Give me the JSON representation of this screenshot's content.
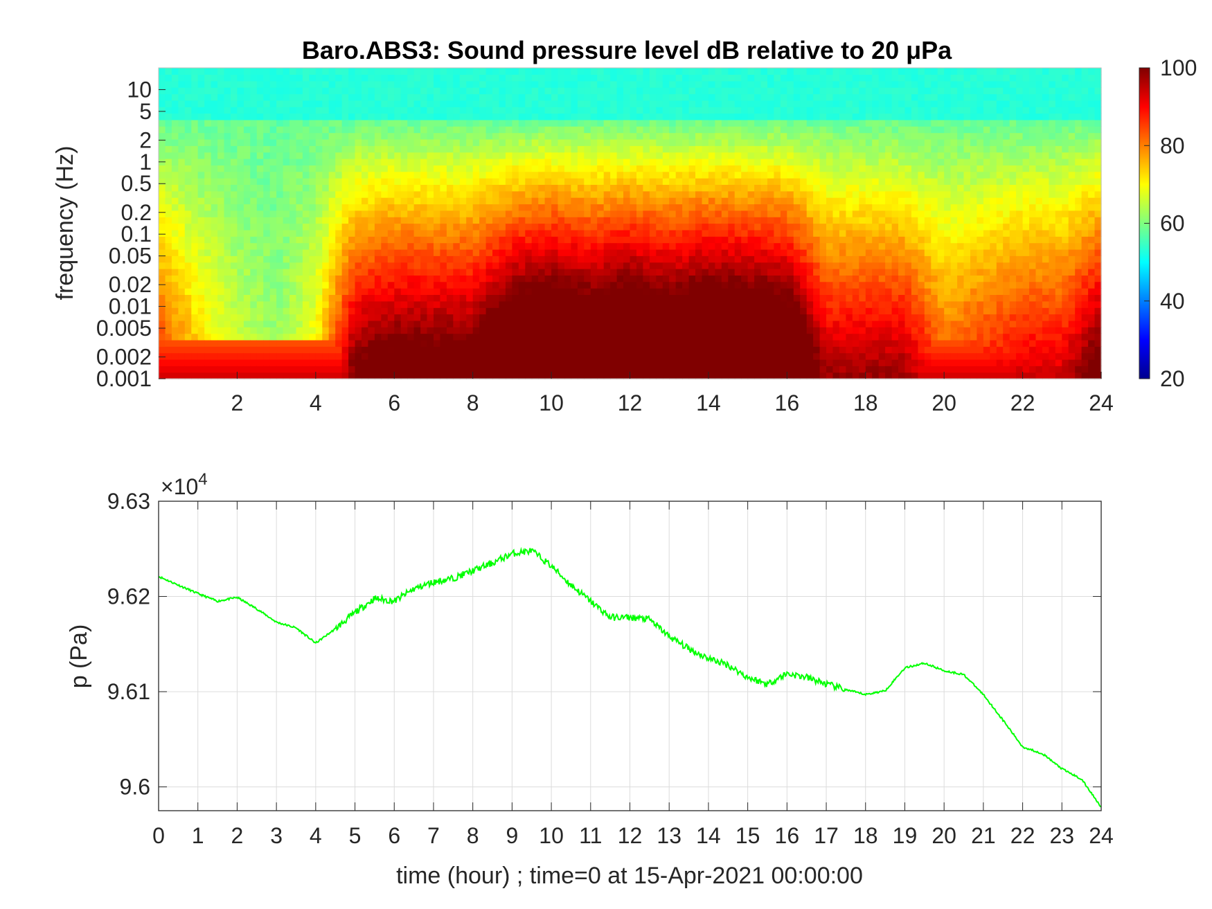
{
  "chart_data": [
    {
      "type": "heatmap",
      "title": "Baro.ABS3: Sound pressure level dB relative to 20 μPa",
      "xlabel": "",
      "ylabel": "frequency (Hz)",
      "xlim": [
        0,
        24
      ],
      "ylim": [
        0.001,
        20
      ],
      "y_scale": "log",
      "x_ticks": [
        2,
        4,
        6,
        8,
        10,
        12,
        14,
        16,
        18,
        20,
        22,
        24
      ],
      "y_ticks": [
        0.001,
        0.002,
        0.005,
        0.01,
        0.02,
        0.05,
        0.1,
        0.2,
        0.5,
        1,
        2,
        5,
        10
      ],
      "y_tick_labels": [
        "0.001",
        "0.002",
        "0.005",
        "0.01",
        "0.02",
        "0.05",
        "0.1",
        "0.2",
        "0.5",
        "1",
        "2",
        "5",
        "10"
      ],
      "colormap": "jet",
      "colorbar": {
        "range": [
          20,
          100
        ],
        "ticks": [
          20,
          40,
          60,
          80,
          100
        ],
        "placement": "right"
      },
      "level_profile_by_hour": {
        "hours": [
          0,
          1,
          2,
          3,
          4,
          5,
          6,
          7,
          8,
          9,
          10,
          11,
          12,
          13,
          14,
          15,
          16,
          17,
          18,
          19,
          20,
          21,
          22,
          23,
          24
        ],
        "level_db_at_0.1Hz": [
          72,
          66,
          62,
          60,
          64,
          78,
          80,
          80,
          80,
          86,
          88,
          86,
          88,
          86,
          88,
          87,
          86,
          76,
          76,
          76,
          70,
          72,
          74,
          74,
          80
        ]
      },
      "high_frequency_level_db": 52
    },
    {
      "type": "line",
      "title": "",
      "xlabel": "time (hour) ; time=0 at 15-Apr-2021 00:00:00",
      "ylabel": "p (Pa)",
      "y_exponent_label": "×10",
      "y_exponent_power": "4",
      "xlim": [
        0,
        24
      ],
      "ylim": [
        9.5975,
        9.63
      ],
      "grid": true,
      "x_ticks": [
        0,
        1,
        2,
        3,
        4,
        5,
        6,
        7,
        8,
        9,
        10,
        11,
        12,
        13,
        14,
        15,
        16,
        17,
        18,
        19,
        20,
        21,
        22,
        23,
        24
      ],
      "y_ticks": [
        9.6,
        9.61,
        9.62,
        9.63
      ],
      "y_tick_labels": [
        "9.6",
        "9.61",
        "9.62",
        "9.63"
      ],
      "line_color": "#00ff00",
      "x": [
        0,
        0.5,
        1,
        1.5,
        2,
        2.5,
        3,
        3.5,
        4,
        4.5,
        5,
        5.5,
        6,
        6.5,
        7,
        7.5,
        8,
        8.5,
        9,
        9.5,
        10,
        10.5,
        11,
        11.5,
        12,
        12.5,
        13,
        13.5,
        14,
        14.5,
        15,
        15.5,
        16,
        16.5,
        17,
        17.5,
        18,
        18.5,
        19,
        19.5,
        20,
        20.5,
        21,
        21.5,
        22,
        22.5,
        23,
        23.5,
        24
      ],
      "y": [
        9.6221,
        9.6212,
        9.6203,
        9.6195,
        9.6199,
        9.6187,
        9.6173,
        9.6167,
        9.6151,
        9.6166,
        9.6183,
        9.6198,
        9.6195,
        9.6208,
        9.6215,
        9.6219,
        9.6227,
        9.6235,
        9.6245,
        9.6248,
        9.6232,
        9.6212,
        9.6195,
        9.6178,
        9.6178,
        9.6176,
        9.6158,
        9.6145,
        9.6135,
        9.6128,
        9.6115,
        9.6108,
        9.6119,
        9.6115,
        9.6108,
        9.6102,
        9.6097,
        9.6101,
        9.6125,
        9.613,
        9.6122,
        9.6118,
        9.6097,
        9.607,
        9.6042,
        9.6035,
        9.6019,
        9.6008,
        9.5979
      ]
    }
  ]
}
